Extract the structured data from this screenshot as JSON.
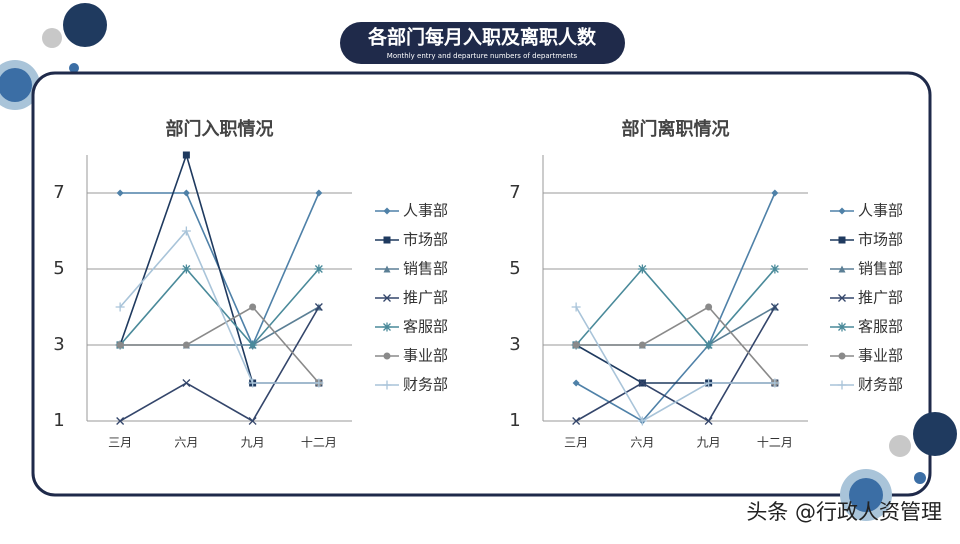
{
  "header": {
    "title": "各部门每月入职及离职人数",
    "subtitle": "Monthly entry and departure numbers of departments"
  },
  "watermark": "头条 @行政人资管理",
  "chart_data": [
    {
      "type": "line",
      "title": "部门入职情况",
      "categories": [
        "三月",
        "六月",
        "九月",
        "十二月"
      ],
      "ylim": [
        1,
        8
      ],
      "yticks": [
        1,
        3,
        5,
        7
      ],
      "grid": true,
      "legend": "right",
      "series": [
        {
          "name": "人事部",
          "color": "#4f81a8",
          "marker": "diamond",
          "values": [
            7,
            7,
            3,
            7
          ]
        },
        {
          "name": "市场部",
          "color": "#1f3a5f",
          "marker": "square",
          "values": [
            3,
            8,
            2,
            2
          ]
        },
        {
          "name": "销售部",
          "color": "#5b7f95",
          "marker": "triangle",
          "values": [
            3,
            3,
            3,
            4
          ]
        },
        {
          "name": "推广部",
          "color": "#34466b",
          "marker": "x",
          "values": [
            1,
            2,
            1,
            4
          ]
        },
        {
          "name": "客服部",
          "color": "#4a8a9a",
          "marker": "star",
          "values": [
            3,
            5,
            3,
            5
          ]
        },
        {
          "name": "事业部",
          "color": "#8a8a8a",
          "marker": "circle",
          "values": [
            3,
            3,
            4,
            2
          ]
        },
        {
          "name": "财务部",
          "color": "#a9c4d9",
          "marker": "plus",
          "values": [
            4,
            6,
            2,
            2
          ]
        }
      ]
    },
    {
      "type": "line",
      "title": "部门离职情况",
      "categories": [
        "三月",
        "六月",
        "九月",
        "十二月"
      ],
      "ylim": [
        1,
        8
      ],
      "yticks": [
        1,
        3,
        5,
        7
      ],
      "grid": true,
      "legend": "right",
      "series": [
        {
          "name": "人事部",
          "color": "#4f81a8",
          "marker": "diamond",
          "values": [
            2,
            1,
            3,
            7
          ]
        },
        {
          "name": "市场部",
          "color": "#1f3a5f",
          "marker": "square",
          "values": [
            3,
            2,
            2,
            2
          ]
        },
        {
          "name": "销售部",
          "color": "#5b7f95",
          "marker": "triangle",
          "values": [
            3,
            3,
            3,
            4
          ]
        },
        {
          "name": "推广部",
          "color": "#34466b",
          "marker": "x",
          "values": [
            1,
            2,
            1,
            4
          ]
        },
        {
          "name": "客服部",
          "color": "#4a8a9a",
          "marker": "star",
          "values": [
            3,
            5,
            3,
            5
          ]
        },
        {
          "name": "事业部",
          "color": "#8a8a8a",
          "marker": "circle",
          "values": [
            3,
            3,
            4,
            2
          ]
        },
        {
          "name": "财务部",
          "color": "#a9c4d9",
          "marker": "plus",
          "values": [
            4,
            1,
            2,
            2
          ]
        }
      ]
    }
  ]
}
